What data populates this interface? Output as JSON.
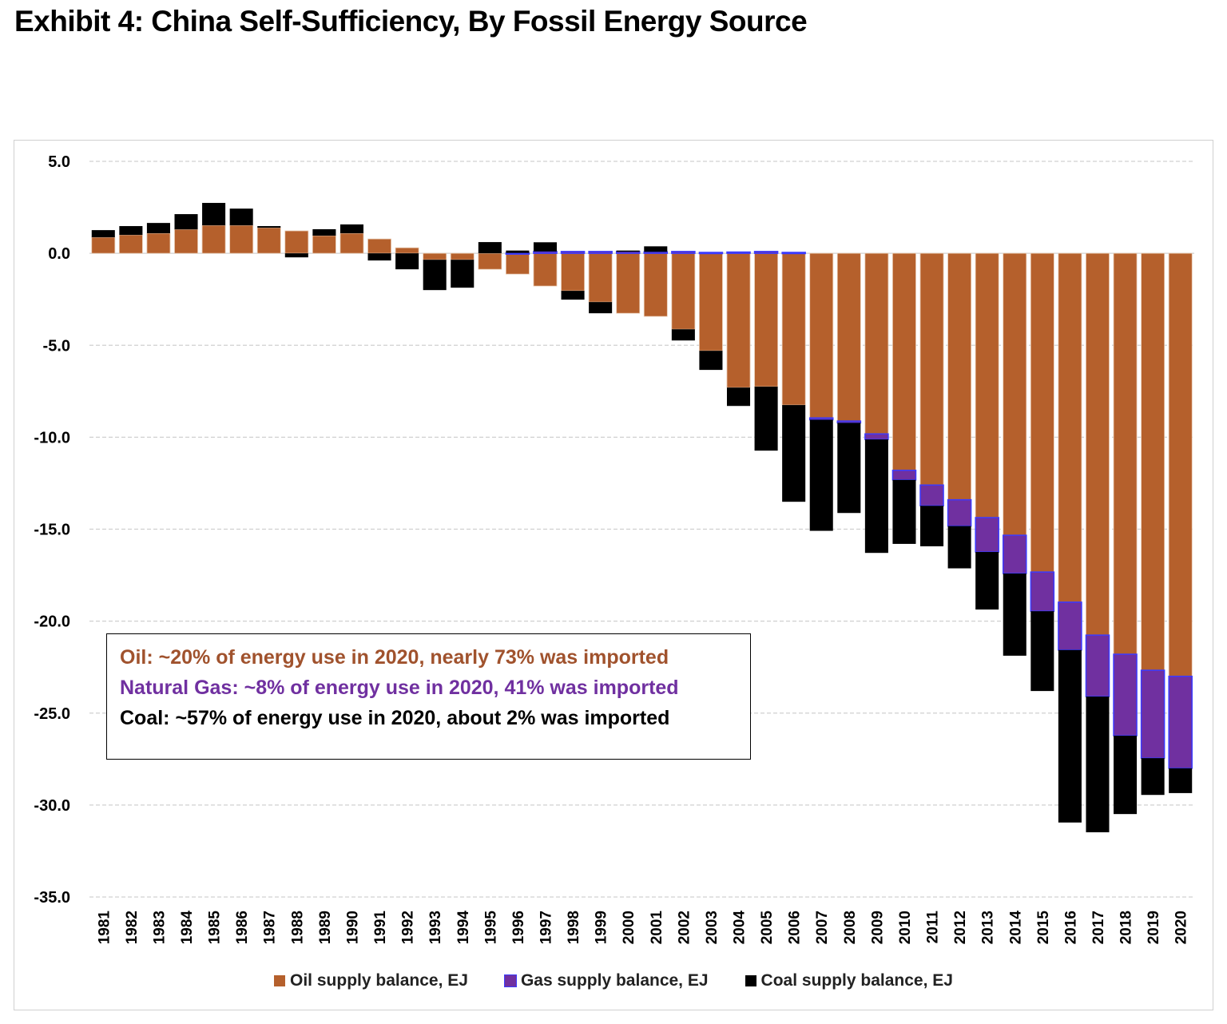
{
  "title": "Exhibit 4: China Self-Sufficiency, By Fossil Energy Source",
  "annotation": {
    "oil": "Oil: ~20% of energy use in 2020, nearly 73% was imported",
    "gas": "Natural Gas: ~8% of energy use in 2020, 41% was imported",
    "coal": "Coal: ~57% of energy use in 2020, about 2% was imported"
  },
  "colors": {
    "oil": "#b5602c",
    "gas": "#7030a0",
    "gas_edge": "#3b3bff",
    "coal": "#000000",
    "annot_oil": "#a0522d",
    "annot_gas": "#7030a0"
  },
  "chart_data": {
    "type": "bar",
    "stacked": true,
    "title": "Exhibit 4: China Self-Sufficiency, By Fossil Energy Source",
    "xlabel": "",
    "ylabel": "",
    "ylim": [
      -35,
      5
    ],
    "yticks": [
      "5.0",
      "0.0",
      "-5.0",
      "-10.0",
      "-15.0",
      "-20.0",
      "-25.0",
      "-30.0",
      "-35.0"
    ],
    "grid": true,
    "legend_placement": "bottom",
    "categories": [
      "1981",
      "1982",
      "1983",
      "1984",
      "1985",
      "1986",
      "1987",
      "1988",
      "1989",
      "1990",
      "1991",
      "1992",
      "1993",
      "1994",
      "1995",
      "1996",
      "1997",
      "1998",
      "1999",
      "2000",
      "2001",
      "2002",
      "2003",
      "2004",
      "2005",
      "2006",
      "2007",
      "2008",
      "2009",
      "2010",
      "2011",
      "2012",
      "2013",
      "2014",
      "2015",
      "2016",
      "2017",
      "2018",
      "2019",
      "2020"
    ],
    "series": [
      {
        "name": "Oil supply balance, EJ",
        "values": [
          0.87,
          1.0,
          1.09,
          1.3,
          1.52,
          1.52,
          1.39,
          1.22,
          0.96,
          1.09,
          0.78,
          0.3,
          -0.35,
          -0.35,
          -0.87,
          -1.13,
          -1.78,
          -2.04,
          -2.65,
          -3.26,
          -3.43,
          -4.13,
          -5.3,
          -7.3,
          -7.25,
          -8.25,
          -8.95,
          -9.12,
          -9.82,
          -11.8,
          -12.6,
          -13.4,
          -14.37,
          -15.33,
          -17.33,
          -18.97,
          -20.76,
          -21.8,
          -22.67,
          -23.0
        ]
      },
      {
        "name": "Gas supply balance, EJ",
        "values": [
          0,
          0,
          0,
          0,
          0,
          0,
          0,
          0,
          0,
          0,
          0,
          0,
          0,
          0,
          0,
          0.02,
          0.1,
          0.1,
          0.1,
          0.1,
          0.08,
          0.1,
          0.05,
          0.07,
          0.1,
          0.05,
          -0.1,
          -0.1,
          -0.3,
          -0.52,
          -1.13,
          -1.43,
          -1.87,
          -2.08,
          -2.13,
          -2.6,
          -3.34,
          -4.43,
          -4.78,
          -5.0
        ]
      },
      {
        "name": "Coal supply balance, EJ",
        "values": [
          0.39,
          0.48,
          0.56,
          0.83,
          1.22,
          0.91,
          0.09,
          -0.22,
          0.35,
          0.48,
          -0.39,
          -0.87,
          -1.65,
          -1.52,
          0.61,
          0.13,
          0.5,
          -0.48,
          -0.61,
          0.05,
          0.3,
          -0.61,
          -1.04,
          -1.0,
          -3.48,
          -5.26,
          -6.04,
          -4.9,
          -6.17,
          -3.48,
          -2.2,
          -2.3,
          -3.13,
          -4.47,
          -4.34,
          -9.38,
          -7.38,
          -4.26,
          -2.0,
          -1.35
        ]
      }
    ]
  }
}
